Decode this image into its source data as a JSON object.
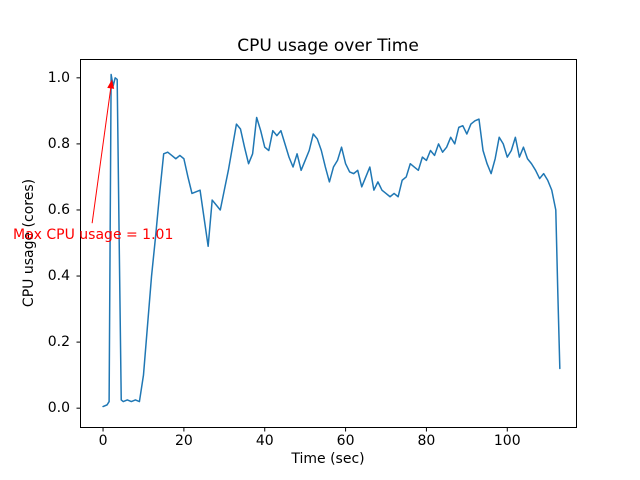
{
  "figure": {
    "background": "#ffffff",
    "axes_color": "#000000"
  },
  "chart_data": {
    "type": "line",
    "title": "CPU usage over Time",
    "xlabel": "Time (sec)",
    "ylabel": "CPU usage (cores)",
    "xlim": [
      -5.7,
      117.0
    ],
    "ylim": [
      -0.057,
      1.057
    ],
    "xticks": [
      0,
      20,
      40,
      60,
      80,
      100
    ],
    "ytick_labels": [
      "0.0",
      "0.2",
      "0.4",
      "0.6",
      "0.8",
      "1.0"
    ],
    "ytick_values": [
      0.0,
      0.2,
      0.4,
      0.6,
      0.8,
      1.0
    ],
    "grid": false,
    "legend": "none",
    "line_color": "#1f77b4",
    "annotation": {
      "text": "Max CPU usage = 1.01",
      "color": "#ff0000",
      "xy": [
        2.2,
        0.995
      ],
      "arrow_tail": [
        -2.7,
        0.56
      ]
    },
    "series": [
      {
        "name": "cpu_usage",
        "points": [
          [
            0,
            0.005
          ],
          [
            1,
            0.01
          ],
          [
            1.5,
            0.02
          ],
          [
            2,
            1.01
          ],
          [
            2.5,
            0.975
          ],
          [
            3,
            1.0
          ],
          [
            3.5,
            0.995
          ],
          [
            4,
            0.5
          ],
          [
            4.5,
            0.025
          ],
          [
            5,
            0.02
          ],
          [
            6,
            0.025
          ],
          [
            7,
            0.02
          ],
          [
            8,
            0.025
          ],
          [
            9,
            0.02
          ],
          [
            10,
            0.1
          ],
          [
            11,
            0.25
          ],
          [
            12,
            0.4
          ],
          [
            13,
            0.52
          ],
          [
            14,
            0.65
          ],
          [
            15,
            0.77
          ],
          [
            16,
            0.775
          ],
          [
            17,
            0.765
          ],
          [
            18,
            0.755
          ],
          [
            19,
            0.765
          ],
          [
            20,
            0.755
          ],
          [
            21,
            0.7
          ],
          [
            22,
            0.65
          ],
          [
            23,
            0.655
          ],
          [
            24,
            0.66
          ],
          [
            25,
            0.575
          ],
          [
            26,
            0.49
          ],
          [
            27,
            0.63
          ],
          [
            28,
            0.615
          ],
          [
            29,
            0.6
          ],
          [
            30,
            0.66
          ],
          [
            31,
            0.72
          ],
          [
            32,
            0.79
          ],
          [
            33,
            0.86
          ],
          [
            34,
            0.845
          ],
          [
            35,
            0.79
          ],
          [
            36,
            0.74
          ],
          [
            37,
            0.77
          ],
          [
            38,
            0.88
          ],
          [
            39,
            0.84
          ],
          [
            40,
            0.79
          ],
          [
            41,
            0.78
          ],
          [
            42,
            0.84
          ],
          [
            43,
            0.825
          ],
          [
            44,
            0.84
          ],
          [
            45,
            0.8
          ],
          [
            46,
            0.76
          ],
          [
            47,
            0.73
          ],
          [
            48,
            0.77
          ],
          [
            49,
            0.72
          ],
          [
            50,
            0.75
          ],
          [
            51,
            0.78
          ],
          [
            52,
            0.83
          ],
          [
            53,
            0.815
          ],
          [
            54,
            0.78
          ],
          [
            55,
            0.73
          ],
          [
            56,
            0.685
          ],
          [
            57,
            0.73
          ],
          [
            58,
            0.75
          ],
          [
            59,
            0.79
          ],
          [
            60,
            0.74
          ],
          [
            61,
            0.715
          ],
          [
            62,
            0.71
          ],
          [
            63,
            0.72
          ],
          [
            64,
            0.67
          ],
          [
            65,
            0.7
          ],
          [
            66,
            0.73
          ],
          [
            67,
            0.66
          ],
          [
            68,
            0.685
          ],
          [
            69,
            0.66
          ],
          [
            70,
            0.65
          ],
          [
            71,
            0.64
          ],
          [
            72,
            0.65
          ],
          [
            73,
            0.64
          ],
          [
            74,
            0.69
          ],
          [
            75,
            0.7
          ],
          [
            76,
            0.74
          ],
          [
            77,
            0.73
          ],
          [
            78,
            0.72
          ],
          [
            79,
            0.76
          ],
          [
            80,
            0.75
          ],
          [
            81,
            0.78
          ],
          [
            82,
            0.765
          ],
          [
            83,
            0.8
          ],
          [
            84,
            0.775
          ],
          [
            85,
            0.79
          ],
          [
            86,
            0.82
          ],
          [
            87,
            0.8
          ],
          [
            88,
            0.85
          ],
          [
            89,
            0.855
          ],
          [
            90,
            0.83
          ],
          [
            91,
            0.86
          ],
          [
            92,
            0.87
          ],
          [
            93,
            0.875
          ],
          [
            94,
            0.78
          ],
          [
            95,
            0.74
          ],
          [
            96,
            0.71
          ],
          [
            97,
            0.755
          ],
          [
            98,
            0.82
          ],
          [
            99,
            0.8
          ],
          [
            100,
            0.76
          ],
          [
            101,
            0.78
          ],
          [
            102,
            0.82
          ],
          [
            103,
            0.76
          ],
          [
            104,
            0.79
          ],
          [
            105,
            0.755
          ],
          [
            106,
            0.74
          ],
          [
            107,
            0.72
          ],
          [
            108,
            0.695
          ],
          [
            109,
            0.71
          ],
          [
            110,
            0.69
          ],
          [
            111,
            0.66
          ],
          [
            112,
            0.6
          ],
          [
            112.5,
            0.35
          ],
          [
            113,
            0.12
          ]
        ]
      }
    ]
  }
}
